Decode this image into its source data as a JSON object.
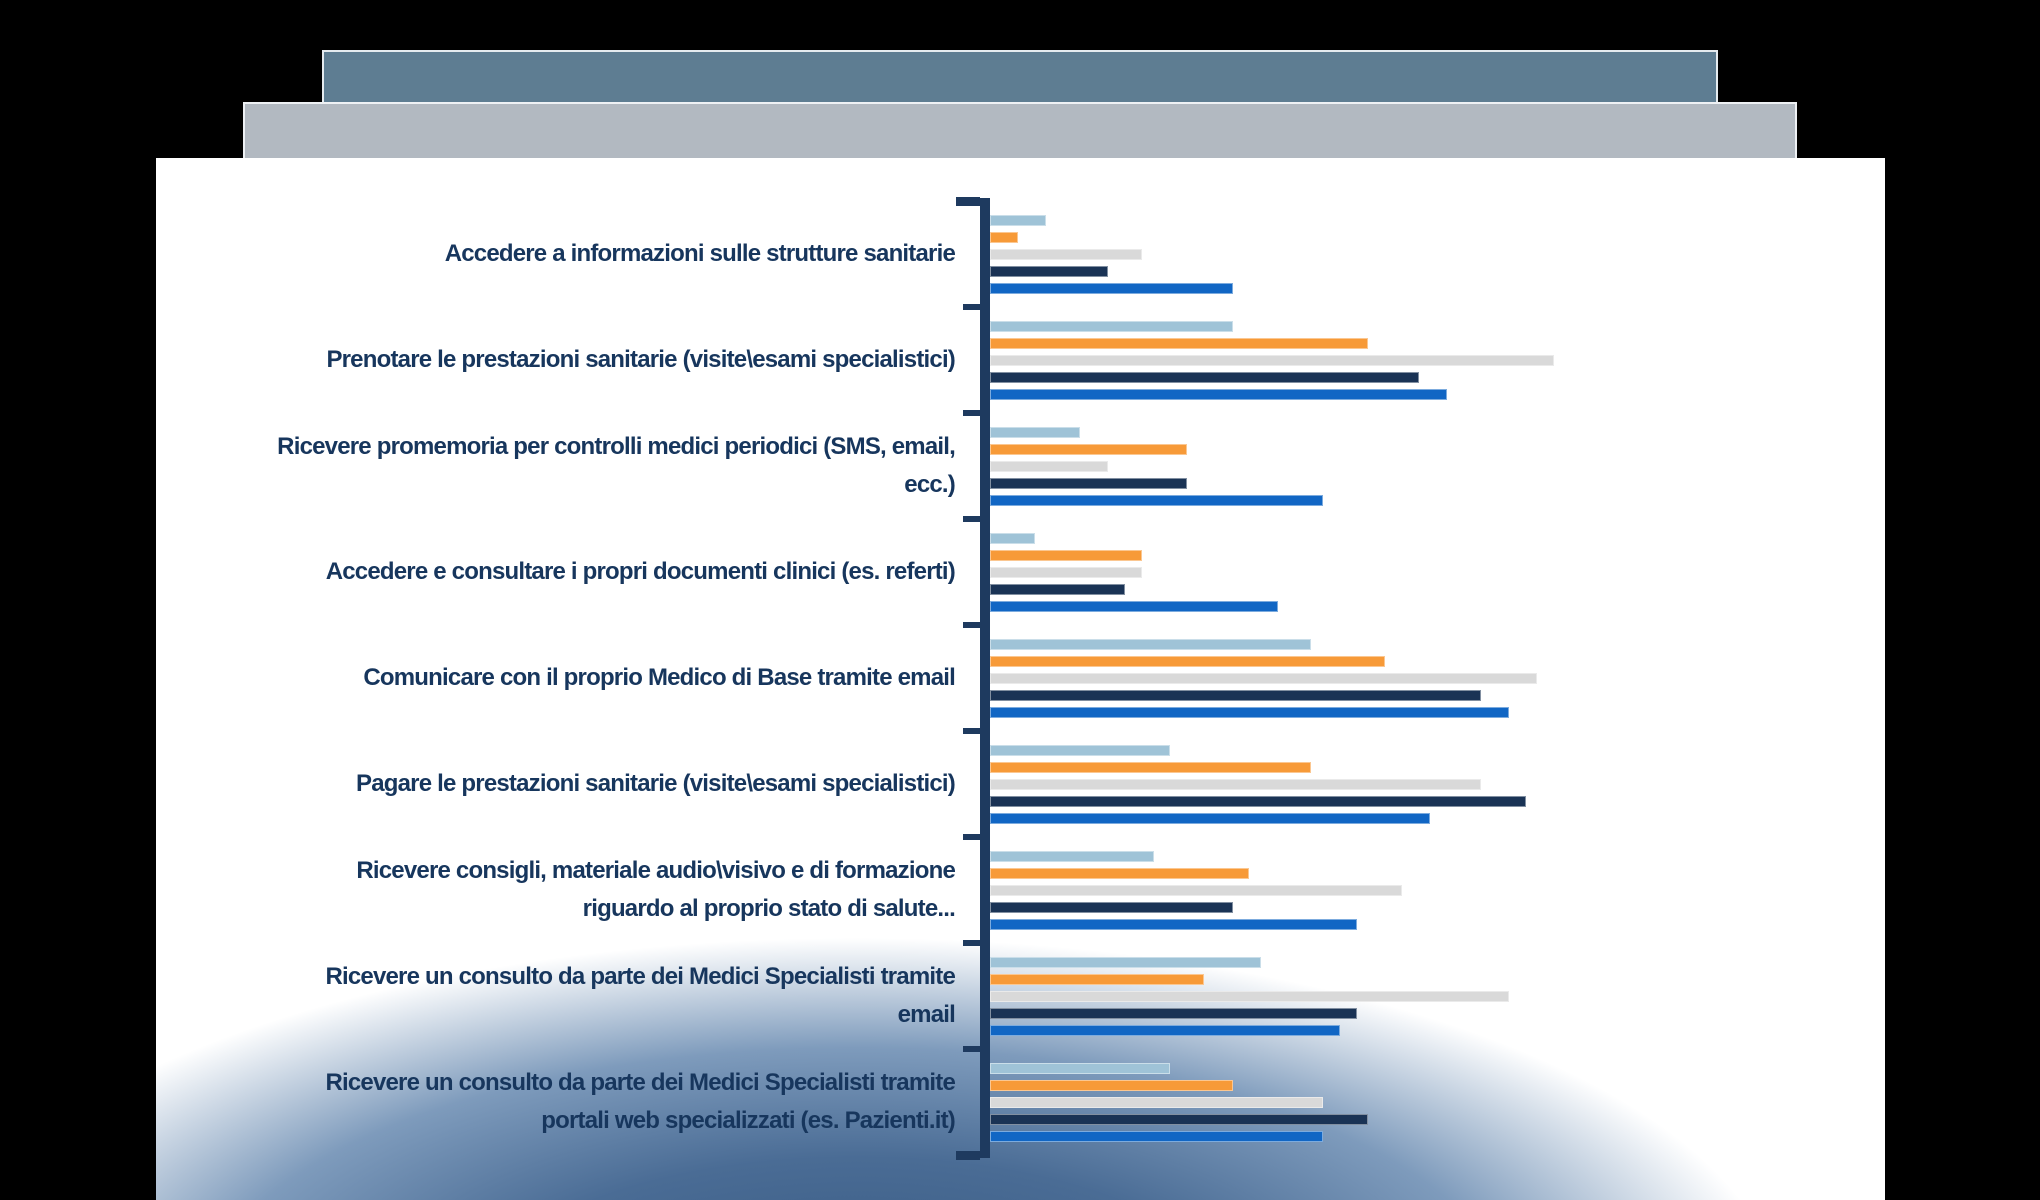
{
  "window": {
    "background_color": "#000000"
  },
  "deck": {
    "header_bar_color": "#5e7d92",
    "subheader_bar_color": "#b2b9c1",
    "page_color": "#ffffff",
    "page_bottom_glow_color": "#35577f"
  },
  "chart_data": {
    "type": "bar",
    "orientation": "horizontal",
    "title": "",
    "legend_visible": false,
    "x_axis_labels_visible": false,
    "grid": false,
    "value_scale": "relative, longest bar = 100 (no numeric axis shown)",
    "xlim": [
      0,
      100
    ],
    "axis_color": "#1e3a5f",
    "label_color": "#17365d",
    "categories": [
      "Accedere a informazioni sulle strutture sanitarie",
      "Prenotare le prestazioni sanitarie (visite\\esami specialistici)",
      "Ricevere promemoria per controlli medici periodici (SMS, email, ecc.)",
      "Accedere e consultare i propri documenti clinici (es. referti)",
      "Comunicare con il proprio Medico di Base tramite email",
      "Pagare le prestazioni sanitarie (visite\\esami specialistici)",
      "Ricevere consigli, materiale audio\\visivo e di formazione riguardo al proprio stato di salute...",
      "Ricevere un consulto da parte dei Medici Specialisti tramite email",
      "Ricevere un consulto da parte dei Medici Specialisti tramite portali web specializzati (es. Pazienti.it)"
    ],
    "series": [
      {
        "name": "light-blue",
        "color": "#9fc3d7",
        "values": [
          10,
          43,
          16,
          8,
          57,
          32,
          29,
          48,
          32
        ]
      },
      {
        "name": "orange",
        "color": "#f79a38",
        "values": [
          5,
          67,
          35,
          27,
          70,
          57,
          46,
          38,
          43
        ]
      },
      {
        "name": "light-gray",
        "color": "#d9d9d9",
        "values": [
          27,
          100,
          21,
          27,
          97,
          87,
          73,
          92,
          59
        ]
      },
      {
        "name": "dark-navy",
        "color": "#1a3355",
        "values": [
          21,
          76,
          35,
          24,
          87,
          95,
          43,
          65,
          67
        ]
      },
      {
        "name": "medium-blue",
        "color": "#1166c4",
        "values": [
          43,
          81,
          59,
          51,
          92,
          78,
          65,
          62,
          59
        ]
      }
    ]
  }
}
